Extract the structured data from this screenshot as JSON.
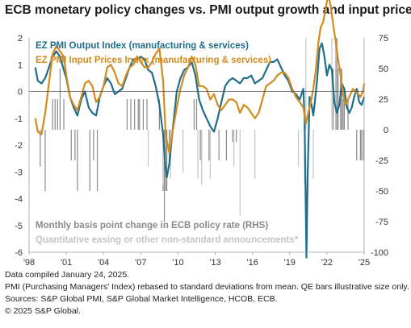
{
  "title": "ECB monetary policy changes vs. PMI output growth and input prices",
  "chart_data": {
    "type": "line",
    "x_ticks": [
      "'98",
      "'01",
      "'04",
      "'07",
      "'10",
      "'13",
      "'16",
      "'19",
      "'22",
      "'25"
    ],
    "y_left_ticks": [
      "2",
      "1",
      "0",
      "-1",
      "-2",
      "-3",
      "-4",
      "-5",
      "-6"
    ],
    "y_right_ticks": [
      "75",
      "50",
      "25",
      "0",
      "-25",
      "-50",
      "-75",
      "-100"
    ],
    "y_left_range": [
      -6,
      2
    ],
    "y_right_range": [
      -100,
      75
    ],
    "x_range": [
      1998.0,
      2025.0
    ],
    "grid": false,
    "legend": [
      {
        "label": "EZ PMI Output Index (manufacturing & services)",
        "color": "#1f6e8c"
      },
      {
        "label": "EZ PMI Input Prices Index (manufacturing & services)",
        "color": "#d38b1f"
      }
    ],
    "annotations": [
      {
        "text": "Monthly basis point change in ECB policy rate (RHS)",
        "color": "#8a8a8a"
      },
      {
        "text": "Quantitative easing or other non-standard announcements*",
        "color": "#c4c4c4"
      }
    ],
    "series": [
      {
        "name": "EZ PMI Output Index (manufacturing & services)",
        "color": "#1f6e8c",
        "x": [
          1998.5,
          1998.7,
          1999.0,
          1999.3,
          1999.6,
          1999.9,
          2000.2,
          2000.5,
          2000.8,
          2001.0,
          2001.3,
          2001.6,
          2001.9,
          2002.2,
          2002.5,
          2002.8,
          2003.1,
          2003.4,
          2003.7,
          2004.0,
          2004.3,
          2004.6,
          2004.9,
          2005.2,
          2005.5,
          2005.8,
          2006.1,
          2006.4,
          2006.7,
          2007.0,
          2007.3,
          2007.6,
          2007.9,
          2008.2,
          2008.5,
          2008.8,
          2009.0,
          2009.1,
          2009.3,
          2009.6,
          2009.9,
          2010.2,
          2010.5,
          2010.8,
          2011.1,
          2011.4,
          2011.7,
          2012.0,
          2012.3,
          2012.6,
          2012.9,
          2013.2,
          2013.5,
          2013.8,
          2014.1,
          2014.4,
          2014.7,
          2015.0,
          2015.3,
          2015.6,
          2015.9,
          2016.2,
          2016.5,
          2016.8,
          2017.1,
          2017.4,
          2017.7,
          2018.0,
          2018.3,
          2018.6,
          2018.9,
          2019.2,
          2019.5,
          2019.8,
          2020.1,
          2020.2,
          2020.28,
          2020.35,
          2020.45,
          2020.6,
          2020.8,
          2020.9,
          2021.0,
          2021.2,
          2021.4,
          2021.6,
          2021.8,
          2022.0,
          2022.2,
          2022.4,
          2022.6,
          2022.8,
          2023.0,
          2023.2,
          2023.4,
          2023.6,
          2023.8,
          2024.0,
          2024.2,
          2024.4,
          2024.6,
          2024.8,
          2025.0
        ],
        "values": [
          0.9,
          0.4,
          0.3,
          0.5,
          0.9,
          1.3,
          1.5,
          1.3,
          0.8,
          0.5,
          -0.2,
          -0.6,
          -0.9,
          -0.3,
          0.0,
          -0.6,
          -0.8,
          -0.9,
          -0.2,
          0.2,
          0.5,
          0.3,
          -0.1,
          0.0,
          0.1,
          0.5,
          0.9,
          1.2,
          1.2,
          1.3,
          1.2,
          0.8,
          0.7,
          0.2,
          -0.5,
          -1.6,
          -2.9,
          -3.2,
          -2.7,
          -1.3,
          0.0,
          0.5,
          0.8,
          0.9,
          1.1,
          0.6,
          -0.3,
          -0.7,
          -1.0,
          -1.3,
          -1.5,
          -1.0,
          -0.4,
          0.2,
          0.4,
          0.5,
          0.4,
          0.3,
          0.5,
          0.5,
          0.6,
          0.3,
          0.4,
          0.5,
          0.8,
          1.1,
          1.1,
          1.2,
          0.9,
          0.6,
          0.4,
          0.0,
          -0.1,
          -0.3,
          0.1,
          -1.0,
          -4.0,
          -6.2,
          -3.0,
          -0.2,
          -0.6,
          -0.9,
          -0.5,
          0.4,
          1.6,
          1.8,
          1.3,
          0.6,
          1.0,
          0.8,
          -0.4,
          -0.8,
          -0.5,
          0.3,
          0.1,
          -0.6,
          -0.8,
          -0.6,
          -0.2,
          0.1,
          -0.4,
          -0.5,
          -0.2
        ]
      },
      {
        "name": "EZ PMI Input Prices Index (manufacturing & services)",
        "color": "#d38b1f",
        "x": [
          1998.5,
          1998.7,
          1999.0,
          1999.3,
          1999.6,
          1999.9,
          2000.2,
          2000.5,
          2000.8,
          2001.0,
          2001.3,
          2001.6,
          2001.9,
          2002.2,
          2002.5,
          2002.8,
          2003.1,
          2003.4,
          2003.7,
          2004.0,
          2004.3,
          2004.6,
          2004.9,
          2005.2,
          2005.5,
          2005.8,
          2006.1,
          2006.4,
          2006.7,
          2007.0,
          2007.3,
          2007.6,
          2007.9,
          2008.2,
          2008.5,
          2008.8,
          2009.0,
          2009.3,
          2009.6,
          2009.9,
          2010.2,
          2010.5,
          2010.8,
          2011.1,
          2011.4,
          2011.7,
          2012.0,
          2012.3,
          2012.6,
          2012.9,
          2013.2,
          2013.5,
          2013.8,
          2014.1,
          2014.4,
          2014.7,
          2015.0,
          2015.3,
          2015.6,
          2015.9,
          2016.2,
          2016.5,
          2016.8,
          2017.1,
          2017.4,
          2017.7,
          2018.0,
          2018.3,
          2018.6,
          2018.9,
          2019.2,
          2019.5,
          2019.8,
          2020.1,
          2020.3,
          2020.5,
          2020.7,
          2020.9,
          2021.1,
          2021.3,
          2021.5,
          2021.7,
          2021.9,
          2022.1,
          2022.3,
          2022.5,
          2022.7,
          2022.9,
          2023.1,
          2023.3,
          2023.5,
          2023.7,
          2023.9,
          2024.1,
          2024.3,
          2024.5,
          2024.7,
          2024.9,
          2025.0
        ],
        "values": [
          -1.0,
          -1.5,
          -1.6,
          -0.8,
          0.3,
          1.4,
          1.7,
          1.5,
          1.3,
          0.6,
          -0.2,
          -0.5,
          -0.7,
          -0.2,
          0.3,
          0.4,
          0.2,
          -0.4,
          -0.2,
          0.2,
          0.9,
          1.0,
          0.7,
          0.3,
          0.2,
          0.6,
          0.9,
          1.0,
          1.3,
          1.1,
          0.9,
          0.9,
          1.1,
          1.4,
          1.6,
          0.4,
          -1.6,
          -2.3,
          -1.4,
          -0.6,
          0.1,
          0.6,
          0.9,
          1.3,
          1.0,
          0.2,
          0.2,
          0.1,
          -0.3,
          -0.1,
          -0.5,
          -0.7,
          -0.5,
          -0.3,
          -0.3,
          -0.4,
          -0.8,
          -0.5,
          -0.6,
          -0.8,
          -1.0,
          -0.8,
          -0.3,
          0.2,
          0.3,
          0.4,
          0.6,
          0.7,
          0.7,
          0.5,
          0.1,
          -0.2,
          -0.4,
          -0.6,
          -1.2,
          -0.8,
          -0.4,
          0.1,
          0.8,
          1.8,
          2.4,
          2.6,
          3.1,
          3.6,
          3.2,
          2.5,
          1.9,
          1.2,
          0.6,
          -0.1,
          -0.5,
          -0.3,
          -0.1,
          0.1,
          0.0,
          -0.1,
          -0.2,
          0.0,
          0.3
        ]
      },
      {
        "name": "Monthly basis point change in ECB policy rate (RHS)",
        "type": "bar",
        "color": "#8a8a8a",
        "x": [
          1998.9,
          1999.3,
          1999.9,
          2000.1,
          2000.3,
          2000.5,
          2000.8,
          2001.4,
          2001.7,
          2001.9,
          2002.9,
          2003.2,
          2003.5,
          2005.9,
          2006.2,
          2006.5,
          2006.8,
          2006.9,
          2007.2,
          2007.5,
          2008.5,
          2008.8,
          2008.9,
          2009.0,
          2009.1,
          2009.3,
          2009.4,
          2011.3,
          2011.5,
          2011.8,
          2011.9,
          2012.5,
          2013.3,
          2013.9,
          2014.4,
          2014.7,
          2022.5,
          2022.7,
          2022.8,
          2022.9,
          2023.1,
          2023.2,
          2023.3,
          2023.4,
          2023.7,
          2024.4,
          2024.7,
          2024.8,
          2024.95
        ],
        "values": [
          -30,
          -50,
          25,
          25,
          25,
          50,
          25,
          -25,
          -25,
          -50,
          -50,
          -25,
          -50,
          25,
          25,
          25,
          25,
          25,
          25,
          25,
          25,
          -50,
          -75,
          -50,
          -50,
          -25,
          -25,
          25,
          25,
          -25,
          -25,
          -25,
          -25,
          -25,
          -10,
          -10,
          50,
          75,
          75,
          50,
          50,
          50,
          25,
          25,
          25,
          -25,
          -25,
          -25,
          -25
        ]
      },
      {
        "name": "Quantitative easing or other non-standard announcements*",
        "type": "bar",
        "color": "#c4c4c4",
        "x": [
          2007.6,
          2008.8,
          2009.4,
          2010.4,
          2011.6,
          2011.9,
          2012.6,
          2014.5,
          2015.0,
          2016.2,
          2019.7,
          2020.2,
          2020.3,
          2020.9,
          2022.4,
          2022.7
        ],
        "values": [
          -30,
          -45,
          -40,
          -35,
          -40,
          -45,
          -40,
          -30,
          -70,
          -40,
          -30,
          -45,
          75,
          -40,
          75,
          70
        ]
      }
    ]
  },
  "footnotes": {
    "compiled": "Data compiled January 24, 2025.",
    "note": "PMI (Purchasing Managers' Index) rebased to standard deviations from mean. QE bars illustrative size only.",
    "sources": "Sources: S&P Global PMI, S&P Global Market Intelligence, HCOB, ECB.",
    "copyright": "© 2025 S&P Global."
  }
}
